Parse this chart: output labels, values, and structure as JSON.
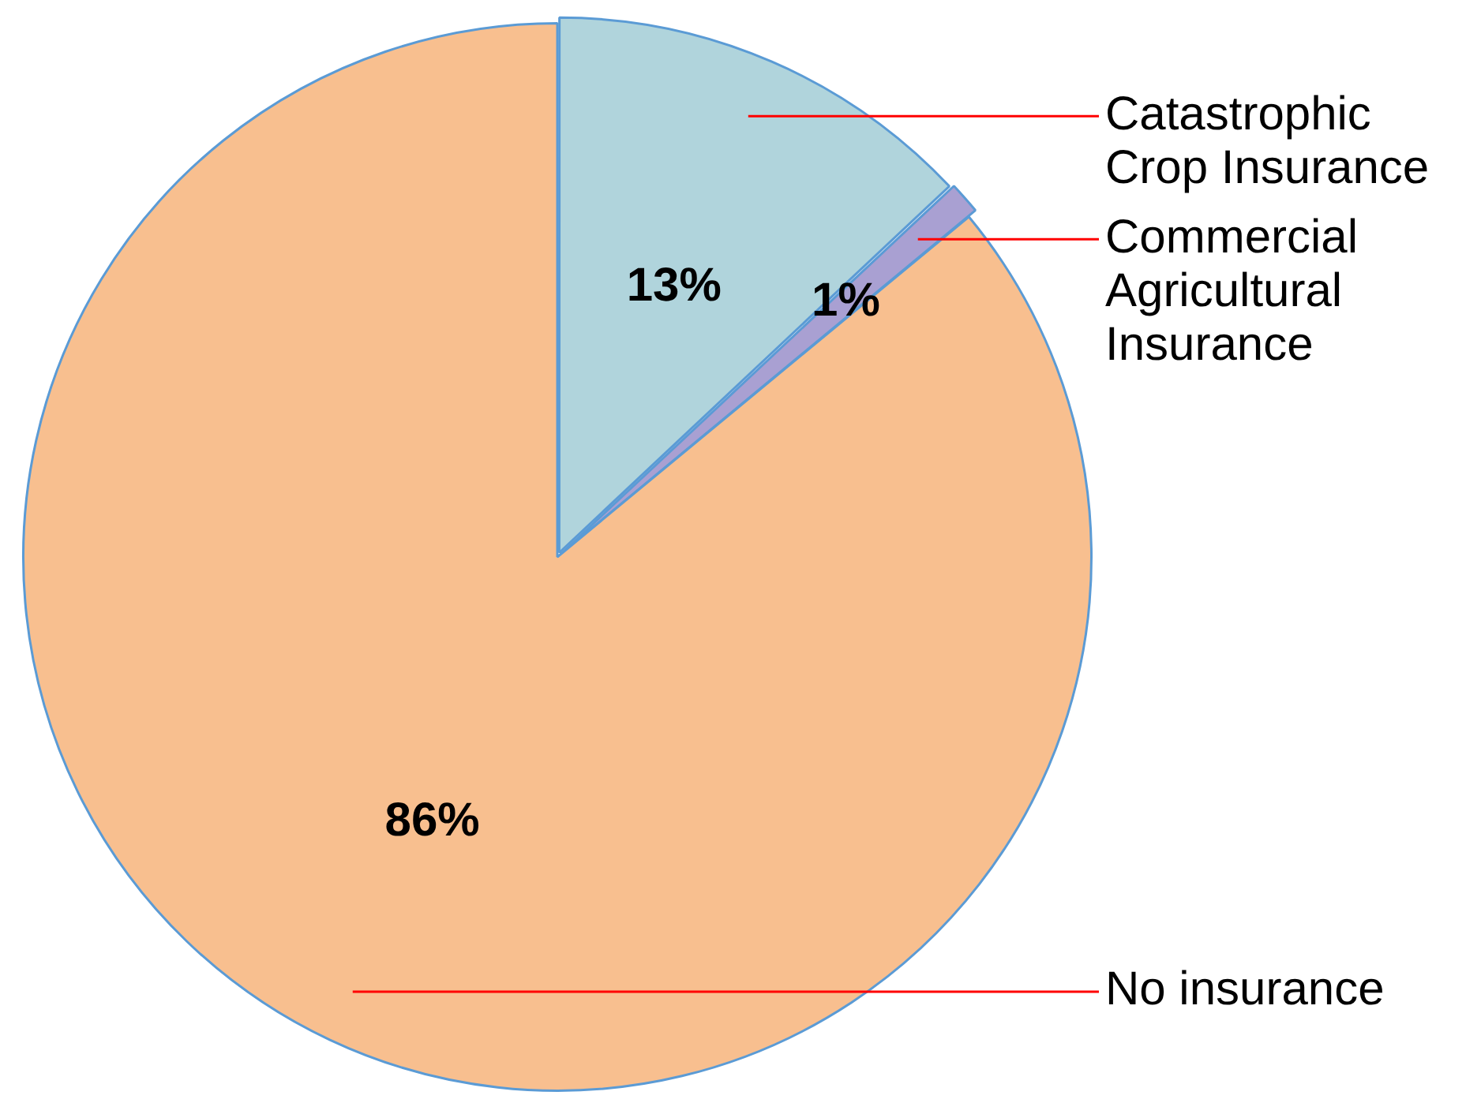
{
  "chart_data": {
    "type": "pie",
    "categories": [
      "Catastrophic Crop Insurance",
      "Commercial Agricultural Insurance",
      "No insurance"
    ],
    "values": [
      13,
      1,
      86
    ],
    "value_labels": [
      "13%",
      "1%",
      "86%"
    ],
    "colors": [
      "#b0d4dc",
      "#a9a0d2",
      "#f8bf8f"
    ],
    "legend": false
  }
}
